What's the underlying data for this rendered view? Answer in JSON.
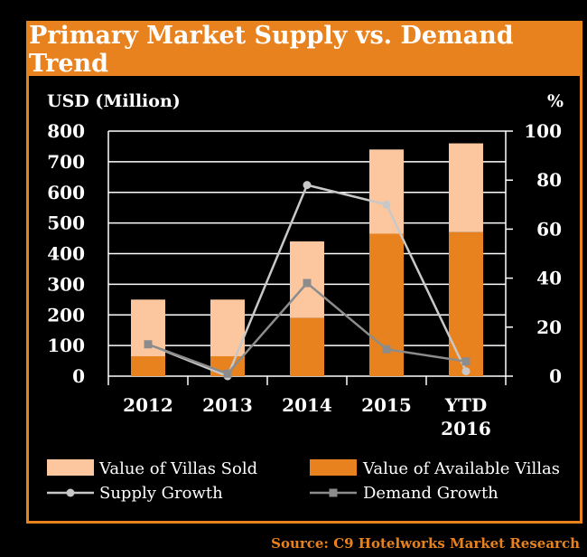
{
  "colors": {
    "accent": "#e8821e",
    "villas_sold": "#fcc79e",
    "available": "#e8821e",
    "supply_line": "#c8c8c8",
    "demand_line": "#8c8c8c",
    "text": "#ffffff"
  },
  "header": {
    "title": "Primary Market Supply vs. Demand Trend"
  },
  "footer": {
    "source": "Source: C9 Hotelworks Market Research"
  },
  "chart_data": {
    "type": "bar",
    "title": "Primary Market Supply vs. Demand Trend",
    "ylabel_left": "USD (Million)",
    "ylabel_right": "%",
    "categories": [
      [
        "2012"
      ],
      [
        "2013"
      ],
      [
        "2014"
      ],
      [
        "2015"
      ],
      [
        "YTD",
        "2016"
      ]
    ],
    "yticks_left": [
      "800",
      "700",
      "600",
      "500",
      "400",
      "300",
      "200",
      "100",
      "0"
    ],
    "yticks_right": [
      "100",
      "80",
      "60",
      "40",
      "20",
      "0"
    ],
    "ylim_left": [
      0,
      800
    ],
    "ylim_right": [
      0,
      100
    ],
    "grid": true,
    "legend_position": "bottom",
    "bar_series": [
      {
        "name": "Value of Villas Sold",
        "values": [
          185,
          185,
          250,
          275,
          290
        ]
      },
      {
        "name": "Value of Available Villas",
        "values": [
          65,
          65,
          190,
          465,
          470
        ]
      }
    ],
    "line_series": [
      {
        "name": "Supply Growth",
        "axis": "right",
        "values": [
          13,
          0,
          78,
          70,
          2
        ]
      },
      {
        "name": "Demand Growth",
        "axis": "right",
        "values": [
          13,
          1,
          38,
          11,
          6
        ]
      }
    ]
  }
}
